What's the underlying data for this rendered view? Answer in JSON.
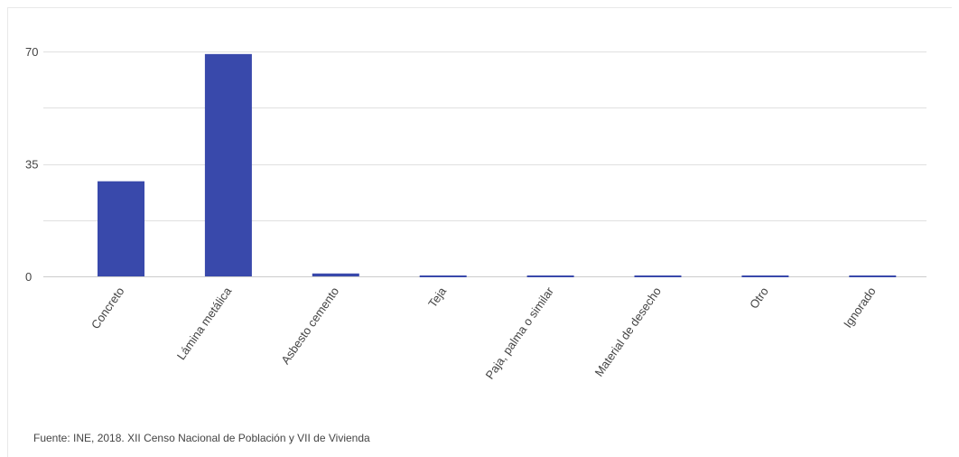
{
  "chart_data": {
    "type": "bar",
    "categories": [
      "Concreto",
      "Lámina metálica",
      "Asbesto cemento",
      "Teja",
      "Paja, palma o similar",
      "Material de desecho",
      "Otro",
      "Ignorado"
    ],
    "values": [
      29.6,
      69.2,
      0.9,
      0.1,
      0.1,
      0.1,
      0.1,
      0.1
    ],
    "yticks": [
      0,
      35,
      70
    ],
    "ylim": [
      0,
      70
    ],
    "grid": true,
    "bar_color": "#3949ab",
    "grid_color": "#e0e0e0",
    "axis_color": "#cccccc",
    "label_color": "#444444"
  },
  "source": "Fuente: INE, 2018. XII Censo Nacional de Población y VII de Vivienda"
}
